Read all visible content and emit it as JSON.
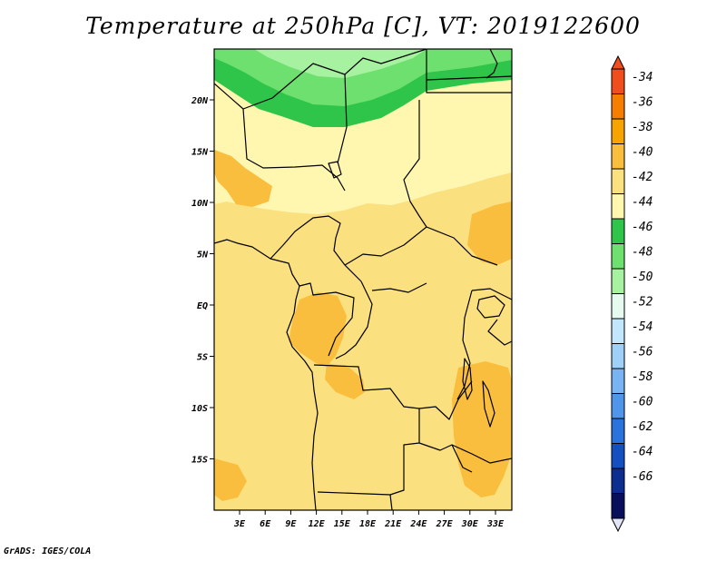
{
  "title": "Temperature at 250hPa [C], VT: 2019122600",
  "credit": "GrADS: IGES/COLA",
  "map": {
    "lat_labels": [
      "20N",
      "15N",
      "10N",
      "5N",
      "EQ",
      "5S",
      "10S",
      "15S"
    ],
    "lon_labels": [
      "3E",
      "6E",
      "9E",
      "12E",
      "15E",
      "18E",
      "21E",
      "24E",
      "27E",
      "30E",
      "33E"
    ]
  },
  "legend": {
    "labels": [
      "-34",
      "-36",
      "-38",
      "-40",
      "-42",
      "-44",
      "-46",
      "-48",
      "-50",
      "-52",
      "-54",
      "-56",
      "-58",
      "-60",
      "-62",
      "-64",
      "-66"
    ],
    "colors": [
      "#f04e1c",
      "#f57d00",
      "#f7a400",
      "#f9be3e",
      "#fbe07f",
      "#fff6b0",
      "#2ec54a",
      "#6de06f",
      "#a6f2a0",
      "#e6fbf0",
      "#c2e6fb",
      "#9fd0f7",
      "#77b4f1",
      "#4f95ea",
      "#2a72dc",
      "#1650c0",
      "#0c2e8e",
      "#08105c"
    ],
    "top_arrow_color": "#f04e1c",
    "bottom_arrow_color": "#e2e4f8"
  }
}
